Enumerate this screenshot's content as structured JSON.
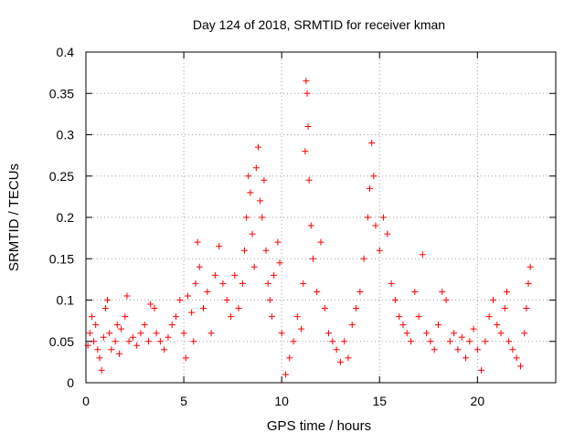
{
  "chart_data": {
    "type": "scatter",
    "title": "Day 124 of 2018, SRMTID for receiver kman",
    "xlabel": "GPS time / hours",
    "ylabel": "SRMTID / TECUs",
    "xlim": [
      0,
      24
    ],
    "ylim": [
      0,
      0.4
    ],
    "x_ticks": [
      0,
      5,
      10,
      15,
      20
    ],
    "x_tick_labels": [
      "0",
      "5",
      "10",
      "15",
      "20"
    ],
    "y_ticks": [
      0,
      0.05,
      0.1,
      0.15,
      0.2,
      0.25,
      0.3,
      0.35,
      0.4
    ],
    "y_tick_labels": [
      "0",
      "0.05",
      "0.1",
      "0.15",
      "0.2",
      "0.25",
      "0.3",
      "0.35",
      "0.4"
    ],
    "grid": true,
    "marker": "+",
    "series": [
      {
        "name": "SRMTID",
        "color": "#ff0000",
        "points": [
          [
            0.1,
            0.045
          ],
          [
            0.2,
            0.06
          ],
          [
            0.3,
            0.08
          ],
          [
            0.4,
            0.05
          ],
          [
            0.5,
            0.07
          ],
          [
            0.6,
            0.04
          ],
          [
            0.7,
            0.03
          ],
          [
            0.8,
            0.015
          ],
          [
            0.9,
            0.055
          ],
          [
            1.0,
            0.09
          ],
          [
            1.1,
            0.1
          ],
          [
            1.2,
            0.06
          ],
          [
            1.3,
            0.04
          ],
          [
            1.5,
            0.05
          ],
          [
            1.6,
            0.07
          ],
          [
            1.7,
            0.035
          ],
          [
            1.8,
            0.065
          ],
          [
            2.0,
            0.08
          ],
          [
            2.1,
            0.105
          ],
          [
            2.2,
            0.05
          ],
          [
            2.4,
            0.055
          ],
          [
            2.6,
            0.045
          ],
          [
            2.8,
            0.06
          ],
          [
            3.0,
            0.07
          ],
          [
            3.2,
            0.05
          ],
          [
            3.3,
            0.095
          ],
          [
            3.5,
            0.09
          ],
          [
            3.6,
            0.06
          ],
          [
            3.8,
            0.05
          ],
          [
            4.0,
            0.04
          ],
          [
            4.2,
            0.055
          ],
          [
            4.4,
            0.07
          ],
          [
            4.6,
            0.08
          ],
          [
            4.8,
            0.1
          ],
          [
            5.0,
            0.06
          ],
          [
            5.1,
            0.03
          ],
          [
            5.2,
            0.105
          ],
          [
            5.4,
            0.085
          ],
          [
            5.5,
            0.05
          ],
          [
            5.6,
            0.12
          ],
          [
            5.7,
            0.17
          ],
          [
            5.8,
            0.14
          ],
          [
            6.0,
            0.09
          ],
          [
            6.2,
            0.11
          ],
          [
            6.4,
            0.06
          ],
          [
            6.6,
            0.13
          ],
          [
            6.8,
            0.165
          ],
          [
            7.0,
            0.12
          ],
          [
            7.2,
            0.1
          ],
          [
            7.4,
            0.08
          ],
          [
            7.6,
            0.13
          ],
          [
            7.8,
            0.09
          ],
          [
            8.0,
            0.12
          ],
          [
            8.1,
            0.16
          ],
          [
            8.2,
            0.2
          ],
          [
            8.3,
            0.25
          ],
          [
            8.4,
            0.23
          ],
          [
            8.5,
            0.18
          ],
          [
            8.6,
            0.14
          ],
          [
            8.7,
            0.26
          ],
          [
            8.8,
            0.285
          ],
          [
            8.9,
            0.22
          ],
          [
            9.0,
            0.2
          ],
          [
            9.1,
            0.245
          ],
          [
            9.2,
            0.16
          ],
          [
            9.3,
            0.12
          ],
          [
            9.4,
            0.1
          ],
          [
            9.5,
            0.08
          ],
          [
            9.6,
            0.13
          ],
          [
            9.8,
            0.17
          ],
          [
            9.9,
            0.145
          ],
          [
            10.0,
            0.06
          ],
          [
            10.2,
            0.01
          ],
          [
            10.4,
            0.03
          ],
          [
            10.6,
            0.05
          ],
          [
            10.8,
            0.08
          ],
          [
            11.0,
            0.065
          ],
          [
            11.1,
            0.12
          ],
          [
            11.2,
            0.28
          ],
          [
            11.25,
            0.365
          ],
          [
            11.3,
            0.35
          ],
          [
            11.35,
            0.31
          ],
          [
            11.4,
            0.245
          ],
          [
            11.5,
            0.19
          ],
          [
            11.6,
            0.15
          ],
          [
            11.8,
            0.11
          ],
          [
            12.0,
            0.17
          ],
          [
            12.2,
            0.09
          ],
          [
            12.4,
            0.06
          ],
          [
            12.6,
            0.05
          ],
          [
            12.8,
            0.04
          ],
          [
            13.0,
            0.025
          ],
          [
            13.2,
            0.05
          ],
          [
            13.4,
            0.03
          ],
          [
            13.6,
            0.07
          ],
          [
            13.8,
            0.09
          ],
          [
            14.0,
            0.11
          ],
          [
            14.2,
            0.15
          ],
          [
            14.4,
            0.2
          ],
          [
            14.5,
            0.235
          ],
          [
            14.6,
            0.29
          ],
          [
            14.7,
            0.25
          ],
          [
            14.8,
            0.19
          ],
          [
            15.0,
            0.16
          ],
          [
            15.2,
            0.2
          ],
          [
            15.4,
            0.18
          ],
          [
            15.6,
            0.12
          ],
          [
            15.8,
            0.1
          ],
          [
            16.0,
            0.08
          ],
          [
            16.2,
            0.07
          ],
          [
            16.4,
            0.06
          ],
          [
            16.6,
            0.05
          ],
          [
            16.8,
            0.11
          ],
          [
            17.0,
            0.08
          ],
          [
            17.2,
            0.155
          ],
          [
            17.4,
            0.06
          ],
          [
            17.6,
            0.05
          ],
          [
            17.8,
            0.04
          ],
          [
            18.0,
            0.07
          ],
          [
            18.2,
            0.11
          ],
          [
            18.4,
            0.1
          ],
          [
            18.6,
            0.05
          ],
          [
            18.8,
            0.06
          ],
          [
            19.0,
            0.04
          ],
          [
            19.2,
            0.055
          ],
          [
            19.4,
            0.03
          ],
          [
            19.6,
            0.05
          ],
          [
            19.8,
            0.065
          ],
          [
            20.0,
            0.04
          ],
          [
            20.2,
            0.015
          ],
          [
            20.4,
            0.05
          ],
          [
            20.6,
            0.08
          ],
          [
            20.8,
            0.1
          ],
          [
            21.0,
            0.07
          ],
          [
            21.2,
            0.06
          ],
          [
            21.4,
            0.09
          ],
          [
            21.5,
            0.11
          ],
          [
            21.6,
            0.05
          ],
          [
            21.8,
            0.04
          ],
          [
            22.0,
            0.03
          ],
          [
            22.2,
            0.02
          ],
          [
            22.4,
            0.06
          ],
          [
            22.5,
            0.09
          ],
          [
            22.6,
            0.12
          ],
          [
            22.7,
            0.14
          ]
        ]
      }
    ]
  }
}
